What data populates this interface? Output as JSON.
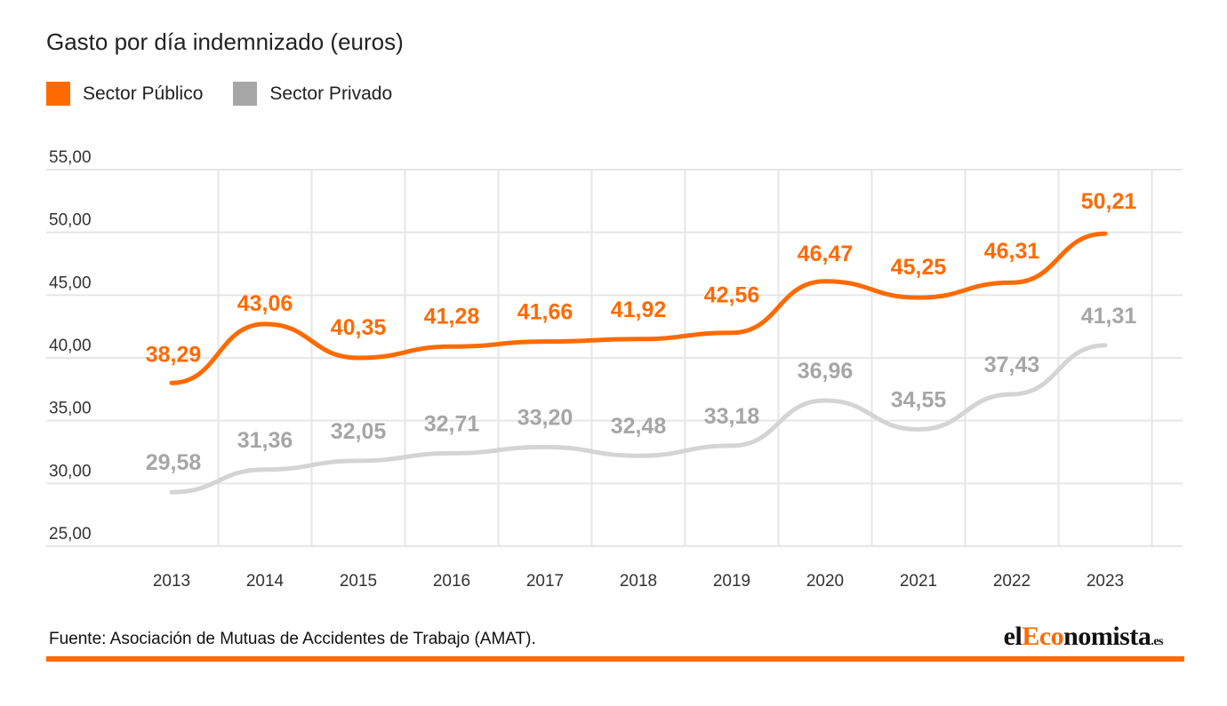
{
  "chart_data": {
    "type": "line",
    "title": "Gasto por día indemnizado (euros)",
    "categories": [
      "2013",
      "2014",
      "2015",
      "2016",
      "2017",
      "2018",
      "2019",
      "2020",
      "2021",
      "2022",
      "2023"
    ],
    "ylim": [
      25,
      55
    ],
    "yticks": [
      25,
      30,
      35,
      40,
      45,
      50,
      55
    ],
    "ytick_labels": [
      "25,00",
      "30,00",
      "35,00",
      "40,00",
      "45,00",
      "50,00",
      "55,00"
    ],
    "grid": true,
    "legend_position": "top-left",
    "series": [
      {
        "name": "Sector Público",
        "color": "#ff6a00",
        "values": [
          38.29,
          43.06,
          40.35,
          41.28,
          41.66,
          41.92,
          42.56,
          46.47,
          45.25,
          46.31,
          50.21
        ],
        "labels": [
          "38,29",
          "43,06",
          "40,35",
          "41,28",
          "41,66",
          "41,92",
          "42,56",
          "46,47",
          "45,25",
          "46,31",
          "50,21"
        ],
        "line_values": [
          38.0,
          42.7,
          40.0,
          40.9,
          41.3,
          41.5,
          42.0,
          46.1,
          44.8,
          46.0,
          49.9
        ]
      },
      {
        "name": "Sector Privado",
        "color": "#a6a6a6",
        "line_color": "#d4d4d4",
        "values": [
          29.58,
          31.36,
          32.05,
          32.71,
          33.2,
          32.48,
          33.18,
          36.96,
          34.55,
          37.43,
          41.31
        ],
        "labels": [
          "29,58",
          "31,36",
          "32,05",
          "32,71",
          "33,20",
          "32,48",
          "33,18",
          "36,96",
          "34,55",
          "37,43",
          "41,31"
        ],
        "line_values": [
          29.3,
          31.1,
          31.8,
          32.4,
          32.9,
          32.2,
          33.0,
          36.6,
          34.3,
          37.1,
          41.0
        ]
      }
    ]
  },
  "footer": {
    "source": "Fuente: Asociación de Mutuas de Accidentes de Trabajo (AMAT).",
    "brand_a": "el",
    "brand_b": "Eco",
    "brand_c": "nomista",
    "brand_d": ".es"
  }
}
